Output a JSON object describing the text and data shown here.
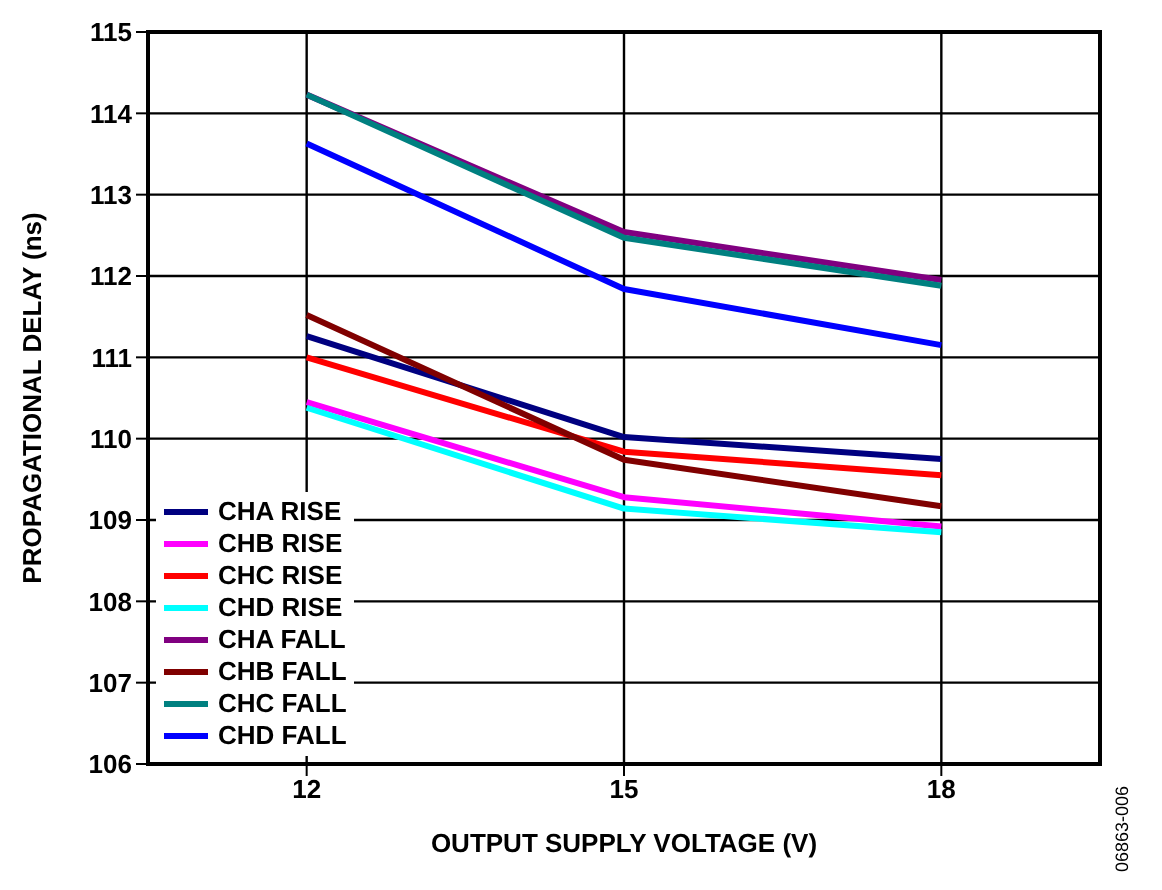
{
  "chart_data": {
    "type": "line",
    "xlabel": "OUTPUT SUPPLY VOLTAGE (V)",
    "ylabel": "PROPAGATIONAL DELAY (ns)",
    "x": [
      12,
      15,
      18
    ],
    "xlim": [
      10.5,
      19.5
    ],
    "xticks": [
      12,
      15,
      18
    ],
    "ylim": [
      106,
      115
    ],
    "yticks": [
      106,
      107,
      108,
      109,
      110,
      111,
      112,
      113,
      114,
      115
    ],
    "grid": true,
    "legend": "bottom left",
    "marker": "none",
    "line_style": "solid",
    "annotations": [
      "06863-006"
    ],
    "series": [
      {
        "name": "CHA RISE",
        "color": "#000080",
        "values": [
          111.26,
          110.02,
          109.75
        ]
      },
      {
        "name": "CHB RISE",
        "color": "#ff00ff",
        "values": [
          110.45,
          109.28,
          108.92
        ]
      },
      {
        "name": "CHC RISE",
        "color": "#ff0000",
        "values": [
          111.0,
          109.84,
          109.55
        ]
      },
      {
        "name": "CHD RISE",
        "color": "#00ffff",
        "values": [
          110.38,
          109.14,
          108.85
        ]
      },
      {
        "name": "CHA FALL",
        "color": "#800080",
        "values": [
          114.23,
          112.54,
          111.95
        ]
      },
      {
        "name": "CHB FALL",
        "color": "#800000",
        "values": [
          111.52,
          109.74,
          109.17
        ]
      },
      {
        "name": "CHC FALL",
        "color": "#008080",
        "values": [
          114.23,
          112.47,
          111.88
        ]
      },
      {
        "name": "CHD FALL",
        "color": "#0000ff",
        "values": [
          113.63,
          111.84,
          111.15
        ]
      }
    ]
  }
}
